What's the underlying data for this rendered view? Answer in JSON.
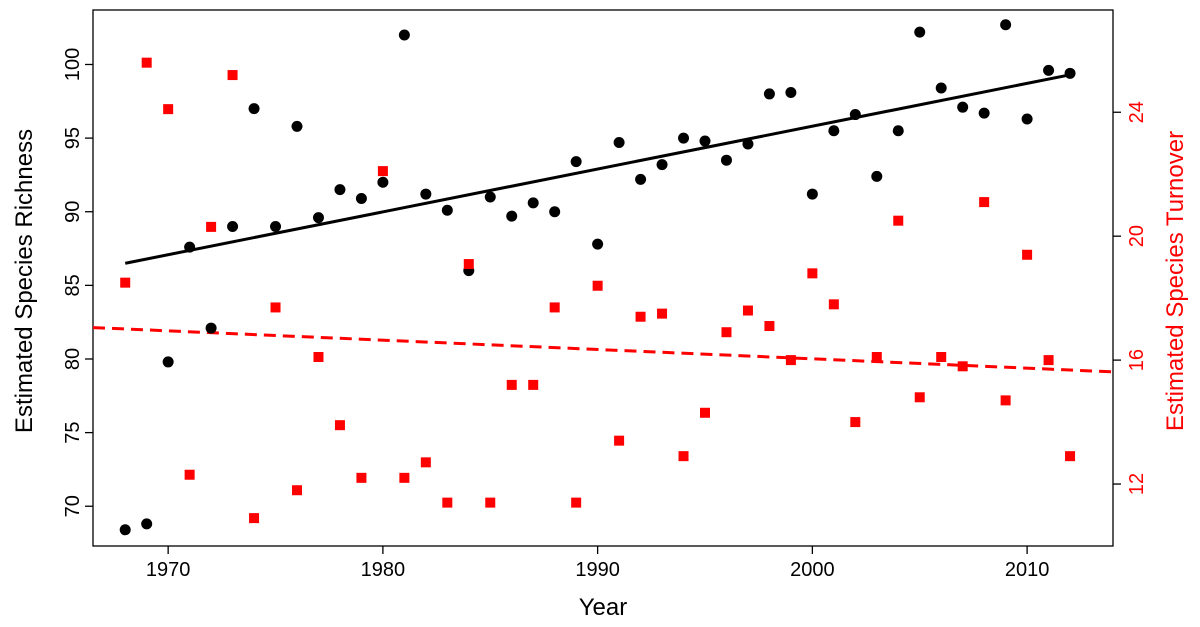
{
  "colors": {
    "richness": "#000000",
    "turnover": "#ff0000",
    "axis": "#000000"
  },
  "chart_data": {
    "type": "scatter",
    "xlabel": "Year",
    "ylabel_left": "Estimated Species Richness",
    "ylabel_right": "Estimated Species Turnover",
    "xlim": [
      1966.5,
      2014
    ],
    "ylim_left": [
      67.3,
      103.7
    ],
    "ylim_right": [
      10,
      27.3
    ],
    "x_ticks": [
      1970,
      1980,
      1990,
      2000,
      2010
    ],
    "y_left_ticks": [
      70,
      75,
      80,
      85,
      90,
      95,
      100
    ],
    "y_right_ticks": [
      12,
      16,
      20,
      24
    ],
    "series": [
      {
        "name": "Estimated Species Richness",
        "axis": "left",
        "marker": "circle",
        "color": "#000000",
        "x": [
          1968,
          1969,
          1970,
          1971,
          1972,
          1973,
          1974,
          1975,
          1976,
          1977,
          1978,
          1979,
          1980,
          1981,
          1982,
          1983,
          1984,
          1985,
          1986,
          1987,
          1988,
          1989,
          1990,
          1991,
          1992,
          1993,
          1994,
          1995,
          1996,
          1997,
          1998,
          1999,
          2000,
          2001,
          2002,
          2003,
          2004,
          2005,
          2006,
          2007,
          2008,
          2009,
          2010,
          2011,
          2012
        ],
        "y": [
          68.4,
          68.8,
          79.8,
          87.6,
          82.1,
          89.0,
          97.0,
          89.0,
          95.8,
          89.6,
          91.5,
          90.9,
          92.0,
          102.0,
          91.2,
          90.1,
          86.0,
          91.0,
          89.7,
          90.6,
          90.0,
          93.4,
          87.8,
          94.7,
          92.2,
          93.2,
          95.0,
          94.8,
          93.5,
          94.6,
          98.0,
          98.1,
          91.2,
          95.5,
          96.6,
          92.4,
          95.5,
          102.2,
          98.4,
          97.1,
          96.7,
          102.7,
          96.3,
          99.6,
          99.4
        ]
      },
      {
        "name": "Estimated Species Turnover",
        "axis": "right",
        "marker": "square",
        "color": "#ff0000",
        "x": [
          1968,
          1969,
          1970,
          1971,
          1972,
          1973,
          1974,
          1975,
          1976,
          1977,
          1978,
          1979,
          1980,
          1981,
          1982,
          1983,
          1984,
          1985,
          1986,
          1987,
          1988,
          1989,
          1990,
          1991,
          1992,
          1993,
          1994,
          1995,
          1996,
          1997,
          1998,
          1999,
          2000,
          2001,
          2002,
          2003,
          2004,
          2005,
          2006,
          2007,
          2008,
          2009,
          2010,
          2011,
          2012
        ],
        "y": [
          18.5,
          25.6,
          24.1,
          12.3,
          20.3,
          25.2,
          10.9,
          17.7,
          11.8,
          16.1,
          13.9,
          12.2,
          22.1,
          12.2,
          12.7,
          11.4,
          19.1,
          11.4,
          15.2,
          15.2,
          17.7,
          11.4,
          18.4,
          13.4,
          17.4,
          17.5,
          12.9,
          14.3,
          16.9,
          17.6,
          17.1,
          16.0,
          18.8,
          17.8,
          14.0,
          16.1,
          20.5,
          14.8,
          16.1,
          15.8,
          21.1,
          14.7,
          19.4,
          16.0,
          12.9
        ]
      }
    ],
    "trendlines": [
      {
        "axis": "left",
        "style": "solid",
        "color": "#000000",
        "x": [
          1968,
          2012
        ],
        "y": [
          86.5,
          99.3
        ]
      },
      {
        "axis": "right",
        "style": "dashed",
        "color": "#ff0000",
        "x": [
          1966.5,
          2014
        ],
        "y": [
          17.05,
          15.62
        ]
      }
    ]
  }
}
